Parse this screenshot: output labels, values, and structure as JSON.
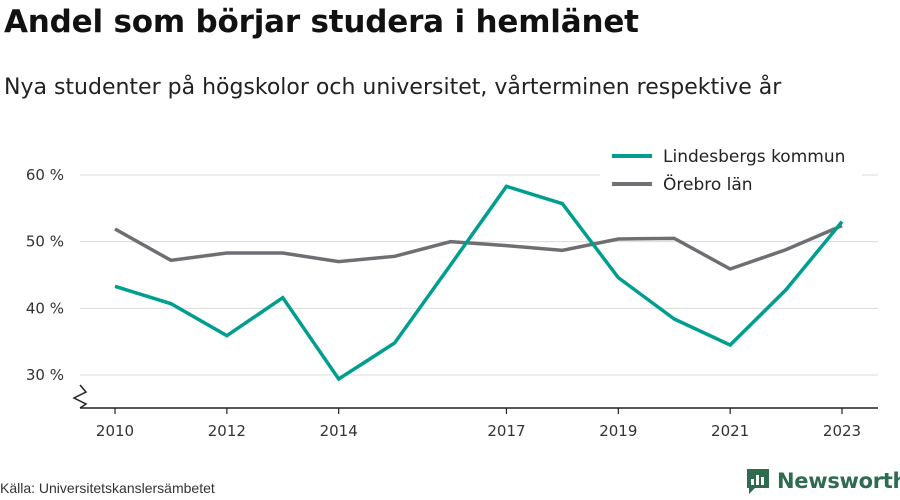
{
  "title": "Andel som börjar studera i hemlänet",
  "subtitle": "Nya studenter på högskolor och universitet, vårterminen respektive år",
  "source": "Källa: Universitetskanslersämbetet",
  "brand": "Newsworthy",
  "chart_data": {
    "type": "line",
    "x": [
      2010,
      2011,
      2012,
      2013,
      2014,
      2015,
      2016,
      2017,
      2018,
      2019,
      2020,
      2021,
      2022,
      2023
    ],
    "x_ticks": [
      2010,
      2012,
      2014,
      2017,
      2019,
      2021,
      2023
    ],
    "y_ticks": [
      30,
      40,
      50,
      60
    ],
    "y_tick_labels": [
      "30 %",
      "40 %",
      "50 %",
      "60 %"
    ],
    "ylim": [
      25,
      63
    ],
    "xlim": [
      2009.6,
      2023.4
    ],
    "y_axis_break": true,
    "grid": true,
    "legend_position": "top-right",
    "series": [
      {
        "name": "Lindesbergs kommun",
        "color": "#009e8f",
        "values": [
          43.3,
          40.7,
          35.9,
          41.6,
          29.4,
          34.8,
          46.5,
          58.3,
          55.7,
          44.6,
          38.4,
          34.5,
          42.8,
          53.0
        ]
      },
      {
        "name": "Örebro län",
        "color": "#6f6f73",
        "values": [
          51.9,
          47.2,
          48.3,
          48.3,
          47.0,
          47.8,
          50.0,
          49.4,
          48.7,
          50.4,
          50.5,
          45.9,
          48.8,
          52.4
        ]
      }
    ]
  }
}
